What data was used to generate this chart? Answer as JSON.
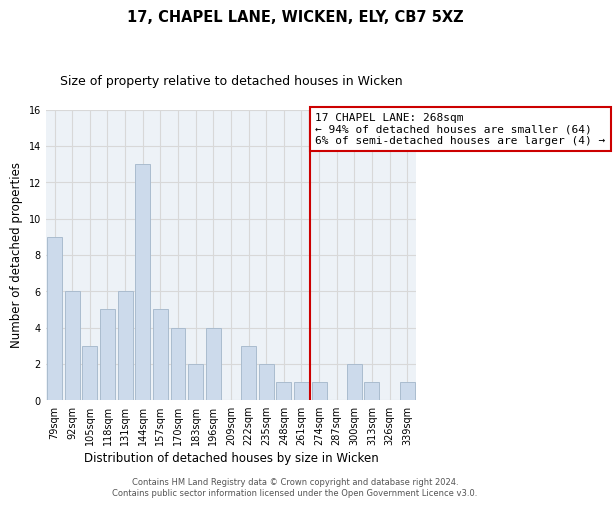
{
  "title": "17, CHAPEL LANE, WICKEN, ELY, CB7 5XZ",
  "subtitle": "Size of property relative to detached houses in Wicken",
  "xlabel": "Distribution of detached houses by size in Wicken",
  "ylabel": "Number of detached properties",
  "bar_labels": [
    "79sqm",
    "92sqm",
    "105sqm",
    "118sqm",
    "131sqm",
    "144sqm",
    "157sqm",
    "170sqm",
    "183sqm",
    "196sqm",
    "209sqm",
    "222sqm",
    "235sqm",
    "248sqm",
    "261sqm",
    "274sqm",
    "287sqm",
    "300sqm",
    "313sqm",
    "326sqm",
    "339sqm"
  ],
  "bar_values": [
    9,
    6,
    3,
    5,
    6,
    13,
    5,
    4,
    2,
    4,
    0,
    3,
    2,
    1,
    1,
    1,
    0,
    2,
    1,
    0,
    1
  ],
  "bar_color": "#ccdaeb",
  "bar_edge_color": "#aabcce",
  "vline_x": 14.5,
  "vline_color": "#cc0000",
  "annotation_text": "17 CHAPEL LANE: 268sqm\n← 94% of detached houses are smaller (64)\n6% of semi-detached houses are larger (4) →",
  "annotation_box_color": "#ffffff",
  "annotation_box_edge": "#cc0000",
  "ylim": [
    0,
    16
  ],
  "yticks": [
    0,
    2,
    4,
    6,
    8,
    10,
    12,
    14,
    16
  ],
  "grid_color": "#d8d8d8",
  "bg_color": "#edf2f7",
  "footer_text": "Contains HM Land Registry data © Crown copyright and database right 2024.\nContains public sector information licensed under the Open Government Licence v3.0.",
  "title_fontsize": 10.5,
  "subtitle_fontsize": 9,
  "axis_label_fontsize": 8.5,
  "tick_fontsize": 7,
  "annotation_fontsize": 8,
  "footer_fontsize": 6
}
